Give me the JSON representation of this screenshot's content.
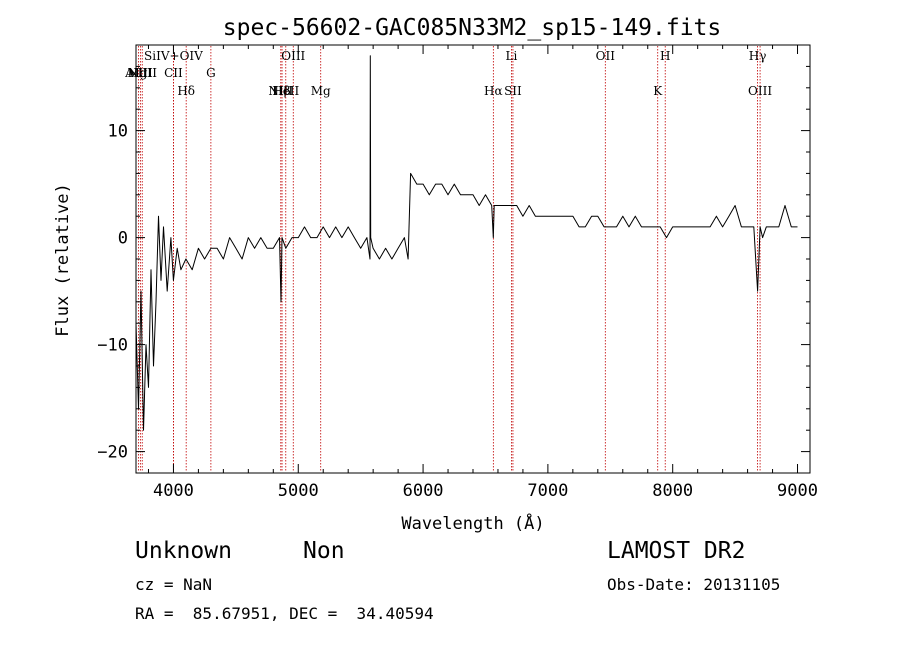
{
  "chart_data": {
    "type": "line",
    "title": "spec-56602-GAC085N33M2_sp15-149.fits",
    "xlabel": "Wavelength (Å)",
    "ylabel": "Flux (relative)",
    "xlim": [
      3700,
      9100
    ],
    "ylim": [
      -22,
      18
    ],
    "xticks": [
      4000,
      5000,
      6000,
      7000,
      8000,
      9000
    ],
    "yticks": [
      -20,
      -10,
      0,
      10
    ],
    "grid": false,
    "series": [
      {
        "x": [
          3700,
          3720,
          3740,
          3760,
          3780,
          3800,
          3820,
          3840,
          3860,
          3880,
          3900,
          3920,
          3950,
          3980,
          4000,
          4030,
          4060,
          4100,
          4150,
          4200,
          4250,
          4300,
          4350,
          4400,
          4450,
          4500,
          4550,
          4600,
          4650,
          4700,
          4750,
          4800,
          4850,
          4862,
          4870,
          4900,
          4950,
          5000,
          5050,
          5100,
          5150,
          5200,
          5250,
          5300,
          5350,
          5400,
          5450,
          5500,
          5550,
          5575,
          5577,
          5580,
          5600,
          5650,
          5700,
          5750,
          5800,
          5850,
          5880,
          5900,
          5950,
          6000,
          6050,
          6100,
          6150,
          6200,
          6250,
          6300,
          6350,
          6400,
          6450,
          6500,
          6550,
          6563,
          6570,
          6600,
          6650,
          6700,
          6750,
          6800,
          6850,
          6900,
          6950,
          7000,
          7050,
          7100,
          7150,
          7200,
          7250,
          7300,
          7350,
          7400,
          7450,
          7500,
          7550,
          7600,
          7650,
          7700,
          7750,
          7800,
          7850,
          7900,
          7950,
          8000,
          8050,
          8100,
          8150,
          8200,
          8250,
          8300,
          8350,
          8400,
          8450,
          8500,
          8550,
          8600,
          8650,
          8680,
          8700,
          8720,
          8750,
          8800,
          8850,
          8900,
          8950,
          9000
        ],
        "values": [
          -8,
          -16,
          -5,
          -18,
          -10,
          -14,
          -3,
          -12,
          -6,
          2,
          -4,
          1,
          -5,
          0,
          -4,
          -1,
          -3,
          -2,
          -3,
          -1,
          -2,
          -1,
          -1,
          -2,
          0,
          -1,
          -2,
          0,
          -1,
          0,
          -1,
          -1,
          0,
          -6,
          0,
          -1,
          0,
          0,
          1,
          0,
          0,
          1,
          0,
          1,
          0,
          1,
          0,
          -1,
          0,
          -2,
          17,
          0,
          -1,
          -2,
          -1,
          -2,
          -1,
          0,
          -2,
          6,
          5,
          5,
          4,
          5,
          5,
          4,
          5,
          4,
          4,
          4,
          3,
          4,
          3,
          0,
          3,
          3,
          3,
          3,
          3,
          2,
          3,
          2,
          2,
          2,
          2,
          2,
          2,
          2,
          1,
          1,
          2,
          2,
          1,
          1,
          1,
          2,
          1,
          2,
          1,
          1,
          1,
          1,
          0,
          1,
          1,
          1,
          1,
          1,
          1,
          1,
          2,
          1,
          2,
          3,
          1,
          1,
          1,
          -5,
          1,
          0,
          1,
          1,
          1,
          3,
          1,
          1
        ]
      }
    ],
    "lines": [
      {
        "label": "AlIII",
        "x": 3720,
        "row": 1
      },
      {
        "label": "NIII",
        "x": 3735,
        "row": 1
      },
      {
        "label": "MgII",
        "x": 3750,
        "row": 1
      },
      {
        "label": "SiIV+OIV",
        "x": 4000,
        "row": 0
      },
      {
        "label": "CII",
        "x": 4000,
        "row": 1
      },
      {
        "label": "Hδ",
        "x": 4102,
        "row": 2
      },
      {
        "label": "G",
        "x": 4300,
        "row": 1
      },
      {
        "label": "NIII",
        "x": 4860,
        "row": 2
      },
      {
        "label": "Hβ",
        "x": 4870,
        "row": 2
      },
      {
        "label": "OIII",
        "x": 4960,
        "row": 0
      },
      {
        "label": "HeII",
        "x": 4900,
        "row": 2
      },
      {
        "label": "Mg",
        "x": 5180,
        "row": 3
      },
      {
        "label": "Hα",
        "x": 6563,
        "row": 2
      },
      {
        "label": "Li",
        "x": 6708,
        "row": 0
      },
      {
        "label": "SII",
        "x": 6720,
        "row": 3
      },
      {
        "label": "OII",
        "x": 7460,
        "row": 0
      },
      {
        "label": "K",
        "x": 7880,
        "row": 2
      },
      {
        "label": "H",
        "x": 7940,
        "row": 0
      },
      {
        "label": "Hγ",
        "x": 8680,
        "row": 0
      },
      {
        "label": "OIII",
        "x": 8700,
        "row": 3
      }
    ]
  },
  "info": {
    "object_class": "Unknown",
    "subclass": "Non",
    "survey": "LAMOST DR2",
    "redshift": "cz = NaN",
    "obs_date": "Obs-Date: 20131105",
    "coords": "RA =  85.67951, DEC =  34.40594"
  },
  "colors": {
    "axes": "#000000",
    "spectrum": "#000000",
    "line_marker": "#c00000"
  }
}
